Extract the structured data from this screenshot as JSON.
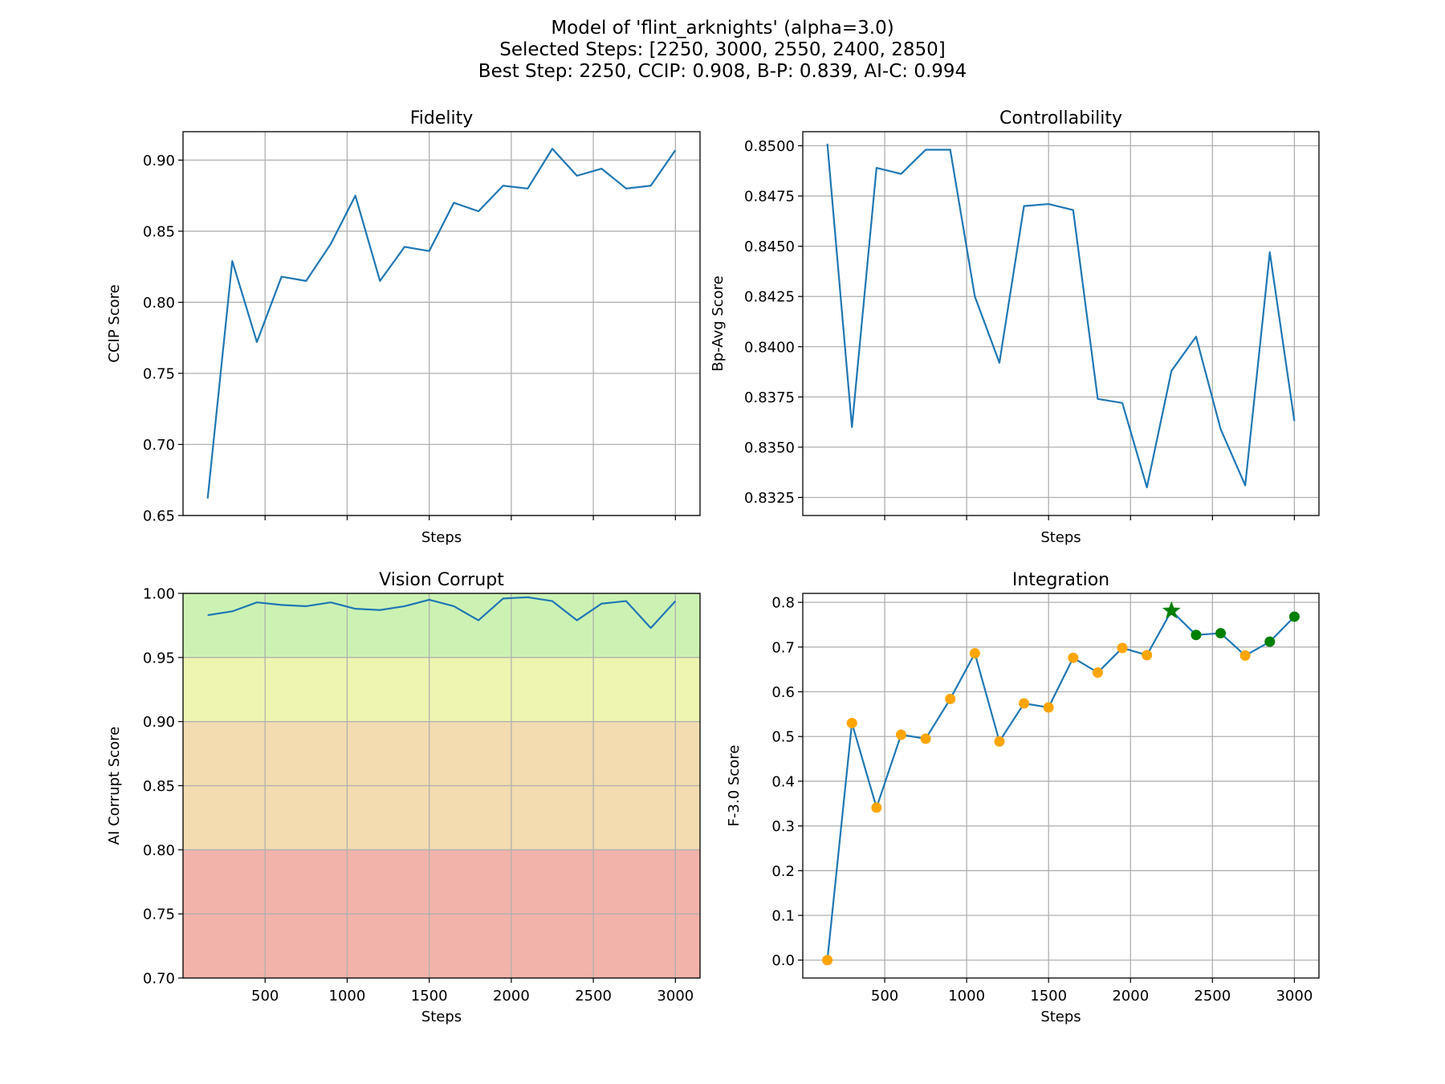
{
  "figure": {
    "title_lines": [
      "Model of 'flint_arknights' (alpha=3.0)",
      "Selected Steps: [2250, 3000, 2550, 2400, 2850]",
      "Best Step: 2250, CCIP: 0.908, B-P: 0.839, AI-C: 0.994"
    ]
  },
  "colors": {
    "line": "#1f77b4",
    "grid": "#b0b0b0",
    "point_default": "#ffa500",
    "point_selected": "#008000",
    "band_green": "#ccf2b3",
    "band_yellow": "#eef5b0",
    "band_orange": "#f2dcb0",
    "band_red": "#f2b3ab"
  },
  "chart_data": [
    {
      "id": "fidelity",
      "type": "line",
      "title": "Fidelity",
      "xlabel": "Steps",
      "ylabel": "CCIP Score",
      "xlim": [
        0,
        3150
      ],
      "ylim": [
        0.65,
        0.92
      ],
      "xticks": [
        500,
        1000,
        1500,
        2000,
        2500,
        3000
      ],
      "show_xticklabels": false,
      "yticks": [
        0.65,
        0.7,
        0.75,
        0.8,
        0.85,
        0.9
      ],
      "ytick_labels": [
        "0.65",
        "0.70",
        "0.75",
        "0.80",
        "0.85",
        "0.90"
      ],
      "grid": true,
      "x": [
        150,
        300,
        450,
        600,
        750,
        900,
        1050,
        1200,
        1350,
        1500,
        1650,
        1800,
        1950,
        2100,
        2250,
        2400,
        2550,
        2700,
        2850,
        3000
      ],
      "series": [
        {
          "values": [
            0.662,
            0.829,
            0.772,
            0.818,
            0.815,
            0.841,
            0.875,
            0.815,
            0.839,
            0.836,
            0.87,
            0.864,
            0.882,
            0.88,
            0.908,
            0.889,
            0.894,
            0.88,
            0.882,
            0.907
          ]
        }
      ]
    },
    {
      "id": "controllability",
      "type": "line",
      "title": "Controllability",
      "xlabel": "Steps",
      "ylabel": "Bp-Avg Score",
      "xlim": [
        0,
        3150
      ],
      "ylim": [
        0.8316,
        0.8507
      ],
      "xticks": [
        500,
        1000,
        1500,
        2000,
        2500,
        3000
      ],
      "show_xticklabels": false,
      "yticks": [
        0.8325,
        0.835,
        0.8375,
        0.84,
        0.8425,
        0.845,
        0.8475,
        0.85
      ],
      "ytick_labels": [
        "0.8325",
        "0.8350",
        "0.8375",
        "0.8400",
        "0.8425",
        "0.8450",
        "0.8475",
        "0.8500"
      ],
      "grid": true,
      "x": [
        150,
        300,
        450,
        600,
        750,
        900,
        1050,
        1200,
        1350,
        1500,
        1650,
        1800,
        1950,
        2100,
        2250,
        2400,
        2550,
        2700,
        2850,
        3000
      ],
      "series": [
        {
          "values": [
            0.8501,
            0.836,
            0.8489,
            0.8486,
            0.8498,
            0.8498,
            0.8425,
            0.8392,
            0.847,
            0.8471,
            0.8468,
            0.8374,
            0.8372,
            0.833,
            0.8388,
            0.8405,
            0.8359,
            0.8331,
            0.8447,
            0.8363
          ]
        }
      ]
    },
    {
      "id": "vision-corrupt",
      "type": "line",
      "title": "Vision Corrupt",
      "xlabel": "Steps",
      "ylabel": "AI Corrupt Score",
      "xlim": [
        0,
        3150
      ],
      "ylim": [
        0.7,
        1.0
      ],
      "xticks": [
        500,
        1000,
        1500,
        2000,
        2500,
        3000
      ],
      "xtick_labels": [
        "500",
        "1000",
        "1500",
        "2000",
        "2500",
        "3000"
      ],
      "show_xticklabels": true,
      "yticks": [
        0.7,
        0.75,
        0.8,
        0.85,
        0.9,
        0.95,
        1.0
      ],
      "ytick_labels": [
        "0.70",
        "0.75",
        "0.80",
        "0.85",
        "0.90",
        "0.95",
        "1.00"
      ],
      "grid": true,
      "bands": [
        {
          "from": 0.95,
          "to": 1.0,
          "color": "band_green"
        },
        {
          "from": 0.9,
          "to": 0.95,
          "color": "band_yellow"
        },
        {
          "from": 0.8,
          "to": 0.9,
          "color": "band_orange"
        },
        {
          "from": 0.7,
          "to": 0.8,
          "color": "band_red"
        }
      ],
      "x": [
        150,
        300,
        450,
        600,
        750,
        900,
        1050,
        1200,
        1350,
        1500,
        1650,
        1800,
        1950,
        2100,
        2250,
        2400,
        2550,
        2700,
        2850,
        3000
      ],
      "series": [
        {
          "values": [
            0.983,
            0.986,
            0.993,
            0.991,
            0.99,
            0.993,
            0.988,
            0.987,
            0.99,
            0.995,
            0.99,
            0.979,
            0.996,
            0.997,
            0.994,
            0.979,
            0.992,
            0.994,
            0.973,
            0.994
          ]
        }
      ]
    },
    {
      "id": "integration",
      "type": "line",
      "title": "Integration",
      "xlabel": "Steps",
      "ylabel": "F-3.0 Score",
      "xlim": [
        0,
        3150
      ],
      "ylim": [
        -0.04,
        0.82
      ],
      "xticks": [
        500,
        1000,
        1500,
        2000,
        2500,
        3000
      ],
      "xtick_labels": [
        "500",
        "1000",
        "1500",
        "2000",
        "2500",
        "3000"
      ],
      "show_xticklabels": true,
      "yticks": [
        0.0,
        0.1,
        0.2,
        0.3,
        0.4,
        0.5,
        0.6,
        0.7,
        0.8
      ],
      "ytick_labels": [
        "0.0",
        "0.1",
        "0.2",
        "0.3",
        "0.4",
        "0.5",
        "0.6",
        "0.7",
        "0.8"
      ],
      "grid": true,
      "x": [
        150,
        300,
        450,
        600,
        750,
        900,
        1050,
        1200,
        1350,
        1500,
        1650,
        1800,
        1950,
        2100,
        2250,
        2400,
        2550,
        2700,
        2850,
        3000
      ],
      "series": [
        {
          "values": [
            0.0,
            0.53,
            0.341,
            0.504,
            0.495,
            0.584,
            0.686,
            0.489,
            0.574,
            0.565,
            0.676,
            0.643,
            0.698,
            0.682,
            0.781,
            0.727,
            0.731,
            0.681,
            0.712,
            0.768
          ]
        }
      ],
      "selected_steps": [
        2250,
        3000,
        2550,
        2400,
        2850
      ],
      "best_step": 2250
    }
  ]
}
